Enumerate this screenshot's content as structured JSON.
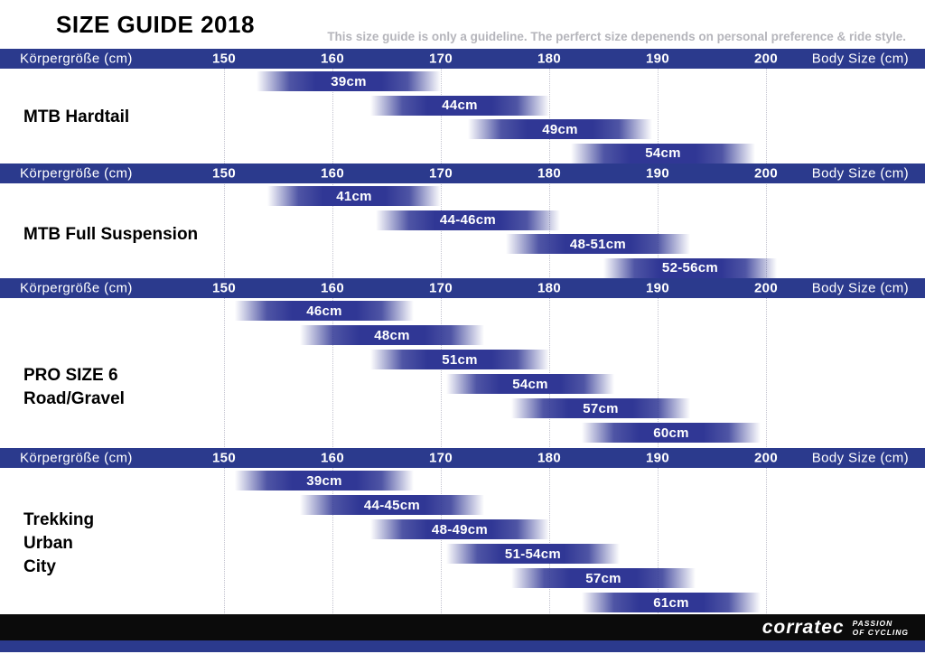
{
  "title": "SIZE GUIDE 2018",
  "subtitle": "This size guide is only a guideline. The perferct size depenends on personal preference & ride style.",
  "chart_data": {
    "type": "range-bar",
    "unit": "body height cm",
    "x_axis": {
      "label_left": "Körpergröße (cm)",
      "label_right": "Body Size (cm)",
      "ticks": [
        150,
        160,
        170,
        180,
        190,
        200
      ]
    },
    "sections": [
      {
        "title_lines": [
          "MTB Hardtail"
        ],
        "bars": [
          {
            "label": "39cm",
            "from": 153,
            "to": 170
          },
          {
            "label": "44cm",
            "from": 163.5,
            "to": 180
          },
          {
            "label": "49cm",
            "from": 172.5,
            "to": 189.5
          },
          {
            "label": "54cm",
            "from": 182,
            "to": 199
          }
        ]
      },
      {
        "title_lines": [
          "MTB Full Suspension"
        ],
        "bars": [
          {
            "label": "41cm",
            "from": 154,
            "to": 170
          },
          {
            "label": "44-46cm",
            "from": 164,
            "to": 181
          },
          {
            "label": "48-51cm",
            "from": 176,
            "to": 193
          },
          {
            "label": "52-56cm",
            "from": 185,
            "to": 201
          }
        ]
      },
      {
        "title_lines": [
          "PRO SIZE 6",
          "Road/Gravel"
        ],
        "bars": [
          {
            "label": "46cm",
            "from": 151,
            "to": 167.5
          },
          {
            "label": "48cm",
            "from": 157,
            "to": 174
          },
          {
            "label": "51cm",
            "from": 163.5,
            "to": 180
          },
          {
            "label": "54cm",
            "from": 170.5,
            "to": 186
          },
          {
            "label": "57cm",
            "from": 176.5,
            "to": 193
          },
          {
            "label": "60cm",
            "from": 183,
            "to": 199.5
          }
        ]
      },
      {
        "title_lines": [
          "Trekking",
          "Urban",
          "City"
        ],
        "bars": [
          {
            "label": "39cm",
            "from": 151,
            "to": 167.5
          },
          {
            "label": "44-45cm",
            "from": 157,
            "to": 174
          },
          {
            "label": "48-49cm",
            "from": 163.5,
            "to": 180
          },
          {
            "label": "51-54cm",
            "from": 170.5,
            "to": 186.5
          },
          {
            "label": "57cm",
            "from": 176.5,
            "to": 193.5
          },
          {
            "label": "61cm",
            "from": 183,
            "to": 199.5
          }
        ]
      }
    ]
  },
  "footer": {
    "brand": "corratec",
    "tagline_lines": [
      "PASSION",
      "OF CYCLING"
    ]
  },
  "colors": {
    "header_blue": "#2b3a8d",
    "bar_blue": "#303795",
    "footer_black": "#0b0b0b",
    "strip_blue": "#2b3a8d",
    "subtitle_gray": "#b5b5bb",
    "gridline_gray": "#c3c3cf"
  }
}
